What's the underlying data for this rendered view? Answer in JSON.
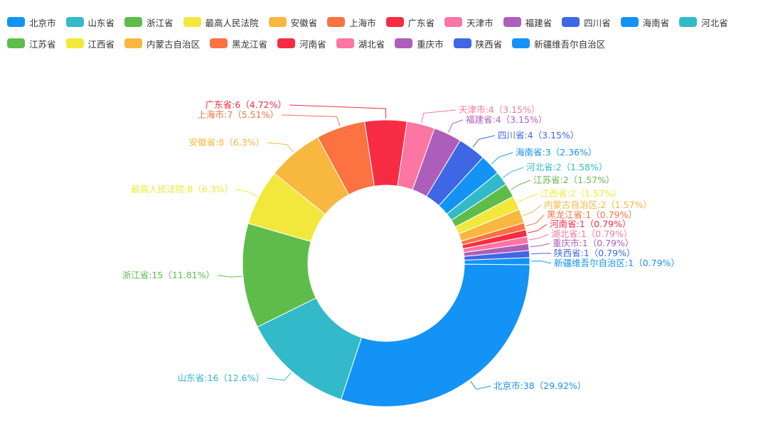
{
  "colors": [
    "#1393f5",
    "#32bacb",
    "#5ebd4a",
    "#f1e83b",
    "#f8b73e",
    "#fc7240",
    "#f72c43",
    "#fb76a2",
    "#ad5eba",
    "#3f66e5",
    "#1393f5",
    "#32bacb",
    "#5ebd4a",
    "#f1e83b",
    "#f8b73e",
    "#fc7240",
    "#f72c43",
    "#fb76a2",
    "#ad5eba",
    "#3f66e5",
    "#1393f5"
  ],
  "chart_data": {
    "type": "pie",
    "variant": "donut",
    "legend_position": "top",
    "slices": [
      {
        "name": "北京市",
        "value": 38,
        "percent": "29.92%",
        "label": "北京市:38（29.92%）"
      },
      {
        "name": "山东省",
        "value": 16,
        "percent": "12.6%",
        "label": "山东省:16（12.6%）"
      },
      {
        "name": "浙江省",
        "value": 15,
        "percent": "11.81%",
        "label": "浙江省:15（11.81%）"
      },
      {
        "name": "最高人民法院",
        "value": 8,
        "percent": "6.3%",
        "label": "最高人民法院:8（6.3%）"
      },
      {
        "name": "安徽省",
        "value": 8,
        "percent": "6.3%",
        "label": "安徽省:8（6.3%）"
      },
      {
        "name": "上海市",
        "value": 7,
        "percent": "5.51%",
        "label": "上海市:7（5.51%）"
      },
      {
        "name": "广东省",
        "value": 6,
        "percent": "4.72%",
        "label": "广东省:6（4.72%）"
      },
      {
        "name": "天津市",
        "value": 4,
        "percent": "3.15%",
        "label": "天津市:4（3.15%）"
      },
      {
        "name": "福建省",
        "value": 4,
        "percent": "3.15%",
        "label": "福建省:4（3.15%）"
      },
      {
        "name": "四川省",
        "value": 4,
        "percent": "3.15%",
        "label": "四川省:4（3.15%）"
      },
      {
        "name": "海南省",
        "value": 3,
        "percent": "2.36%",
        "label": "海南省:3（2.36%）"
      },
      {
        "name": "河北省",
        "value": 2,
        "percent": "1.58%",
        "label": "河北省:2（1.58%）"
      },
      {
        "name": "江苏省",
        "value": 2,
        "percent": "1.57%",
        "label": "江苏省:2（1.57%）"
      },
      {
        "name": "江西省",
        "value": 2,
        "percent": "1.57%",
        "label": "江西省:2（1.57%）"
      },
      {
        "name": "内蒙古自治区",
        "value": 2,
        "percent": "1.57%",
        "label": "内蒙古自治区:2（1.57%）"
      },
      {
        "name": "黑龙江省",
        "value": 1,
        "percent": "0.79%",
        "label": "黑龙江省:1（0.79%）"
      },
      {
        "name": "河南省",
        "value": 1,
        "percent": "0.79%",
        "label": "河南省:1（0.79%）"
      },
      {
        "name": "湖北省",
        "value": 1,
        "percent": "0.79%",
        "label": "湖北省:1（0.79%）"
      },
      {
        "name": "重庆市",
        "value": 1,
        "percent": "0.79%",
        "label": "重庆市:1（0.79%）"
      },
      {
        "name": "陕西省",
        "value": 1,
        "percent": "0.79%",
        "label": "陕西省:1（0.79%）"
      },
      {
        "name": "新疆维吾尔自治区",
        "value": 1,
        "percent": "0.79%",
        "label": "新疆维吾尔自治区:1（0.79%）"
      }
    ]
  }
}
